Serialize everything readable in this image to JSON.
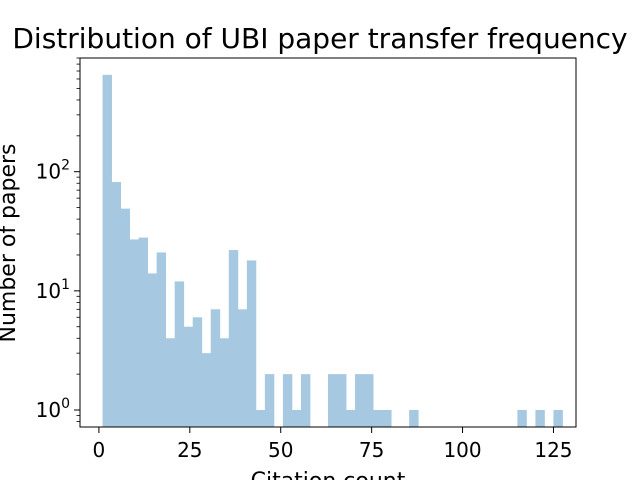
{
  "chart_data": {
    "type": "bar",
    "title": "Distribution of UBI paper transfer frequency",
    "xlabel": "Citation count",
    "ylabel": "Number of papers",
    "yscale": "log",
    "xlim": [
      -5.2,
      131.2
    ],
    "ylim": [
      0.72,
      900
    ],
    "bin_start": 1,
    "bin_width": 2.48,
    "values": [
      650,
      82,
      49,
      27,
      28,
      14,
      21,
      4,
      12,
      5,
      6,
      3,
      7,
      4,
      22,
      7,
      18,
      1,
      2,
      0,
      2,
      1,
      2,
      0,
      0,
      2,
      2,
      1,
      2,
      2,
      1,
      1,
      0,
      0,
      1,
      0,
      0,
      0,
      0,
      0,
      0,
      0,
      0,
      0,
      0,
      0,
      1,
      0,
      1,
      0,
      1
    ],
    "bar_color": "#a6c8e0",
    "grid": false,
    "x_ticks": [
      {
        "value": 0,
        "label": "0"
      },
      {
        "value": 25,
        "label": "25"
      },
      {
        "value": 50,
        "label": "50"
      },
      {
        "value": 75,
        "label": "75"
      },
      {
        "value": 100,
        "label": "100"
      },
      {
        "value": 125,
        "label": "125"
      }
    ],
    "y_ticks": [
      {
        "value": 1,
        "base": "10",
        "exp": "0"
      },
      {
        "value": 10,
        "base": "10",
        "exp": "1"
      },
      {
        "value": 100,
        "base": "10",
        "exp": "2"
      }
    ]
  }
}
